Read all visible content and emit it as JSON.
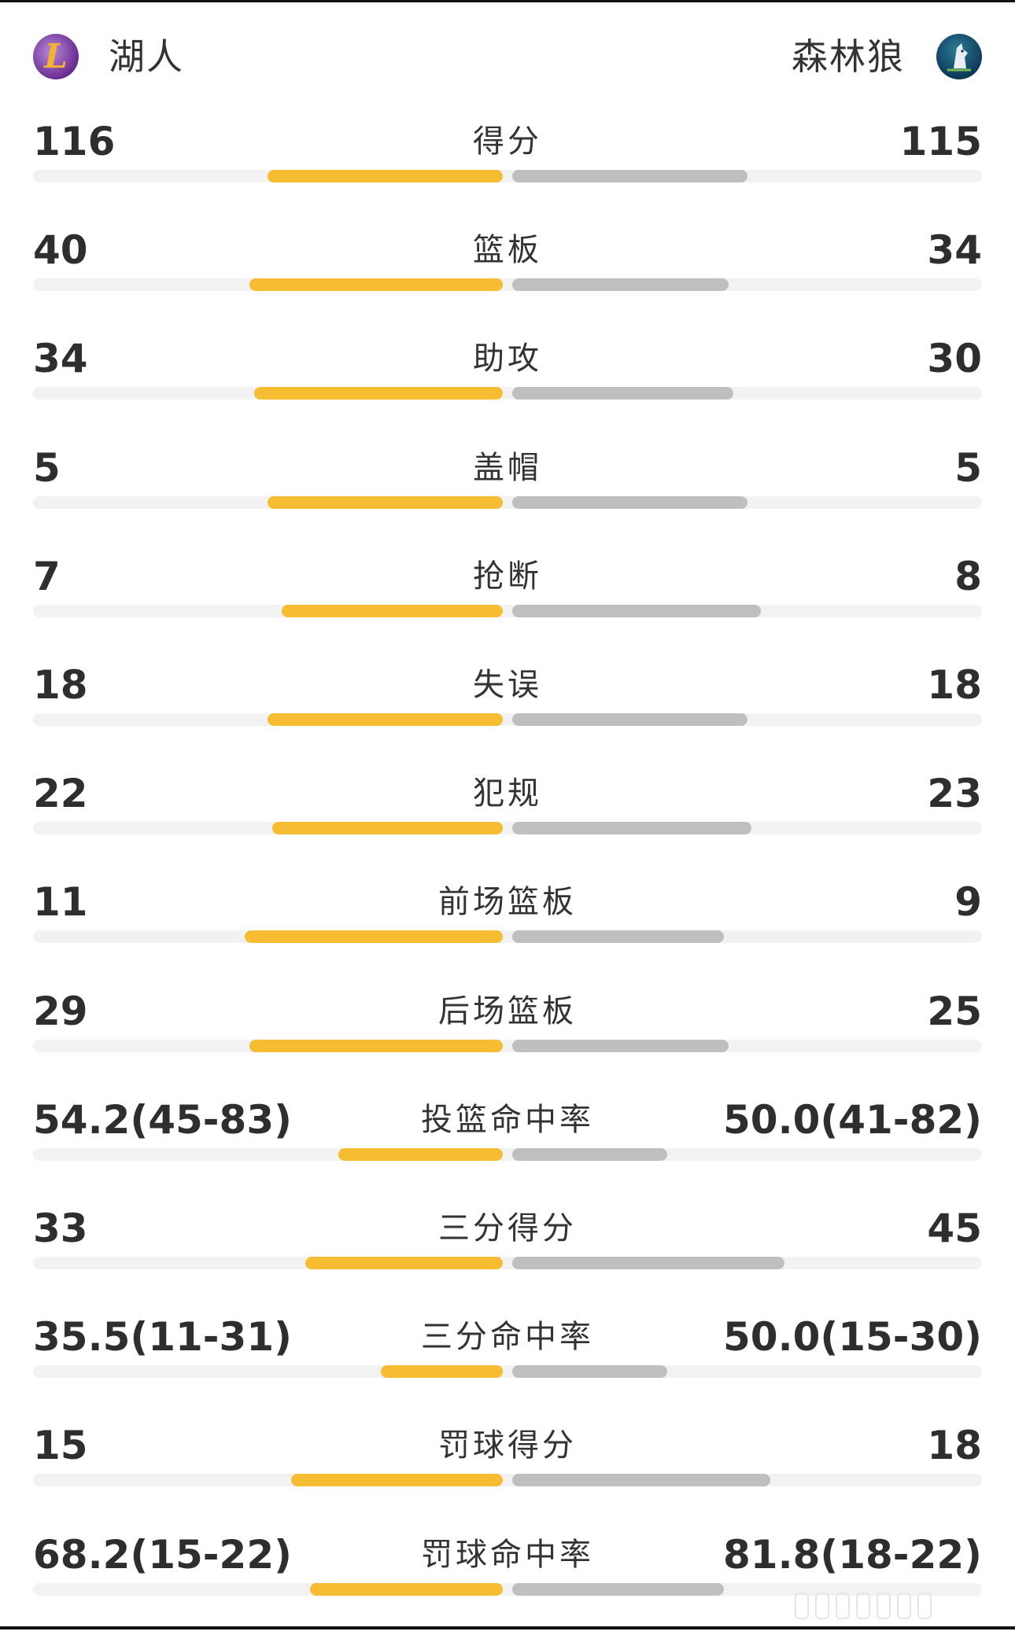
{
  "header": {
    "home_team": "湖人",
    "away_team": "森林狼",
    "home_logo_icon": "lakers-logo-icon",
    "away_logo_icon": "timberwolves-logo-icon"
  },
  "colors": {
    "home_bar": "#f6bd33",
    "away_bar": "#bfbfbf",
    "track": "#f2f2f2"
  },
  "stats": [
    {
      "label": "得分",
      "home": "116",
      "away": "115",
      "home_fraction": 0.5,
      "away_fraction": 0.5
    },
    {
      "label": "篮板",
      "home": "40",
      "away": "34",
      "home_fraction": 0.54,
      "away_fraction": 0.46
    },
    {
      "label": "助攻",
      "home": "34",
      "away": "30",
      "home_fraction": 0.53,
      "away_fraction": 0.47
    },
    {
      "label": "盖帽",
      "home": "5",
      "away": "5",
      "home_fraction": 0.5,
      "away_fraction": 0.5
    },
    {
      "label": "抢断",
      "home": "7",
      "away": "8",
      "home_fraction": 0.47,
      "away_fraction": 0.53
    },
    {
      "label": "失误",
      "home": "18",
      "away": "18",
      "home_fraction": 0.5,
      "away_fraction": 0.5
    },
    {
      "label": "犯规",
      "home": "22",
      "away": "23",
      "home_fraction": 0.49,
      "away_fraction": 0.51
    },
    {
      "label": "前场篮板",
      "home": "11",
      "away": "9",
      "home_fraction": 0.55,
      "away_fraction": 0.45
    },
    {
      "label": "后场篮板",
      "home": "29",
      "away": "25",
      "home_fraction": 0.54,
      "away_fraction": 0.46
    },
    {
      "label": "投篮命中率",
      "home": "54.2(45-83)",
      "away": "50.0(41-82)",
      "home_fraction": 0.35,
      "away_fraction": 0.33
    },
    {
      "label": "三分得分",
      "home": "33",
      "away": "45",
      "home_fraction": 0.42,
      "away_fraction": 0.58
    },
    {
      "label": "三分命中率",
      "home": "35.5(11-31)",
      "away": "50.0(15-30)",
      "home_fraction": 0.26,
      "away_fraction": 0.33
    },
    {
      "label": "罚球得分",
      "home": "15",
      "away": "18",
      "home_fraction": 0.45,
      "away_fraction": 0.55
    },
    {
      "label": "罚球命中率",
      "home": "68.2(15-22)",
      "away": "81.8(18-22)",
      "home_fraction": 0.41,
      "away_fraction": 0.45
    }
  ]
}
